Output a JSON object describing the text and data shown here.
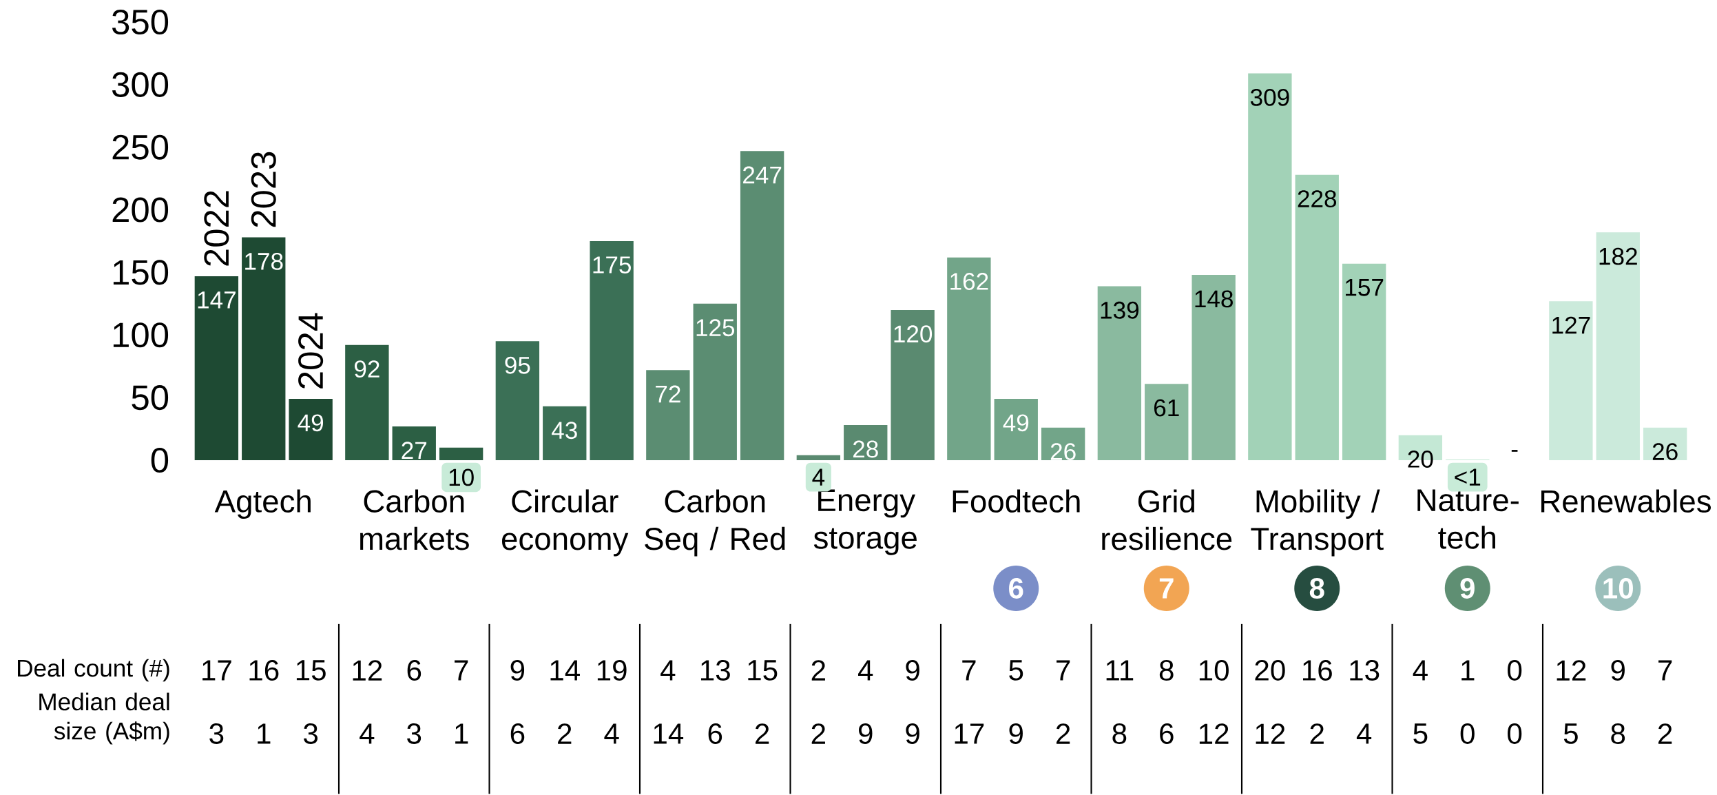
{
  "chart_data": [
    {
      "type": "bar",
      "categories": [
        "Agtech",
        "Carbon markets",
        "Circular economy",
        "Carbon Seq / Red",
        "Energy storage",
        "Foodtech",
        "Grid resilience",
        "Mobility / Transport",
        "Nature-tech",
        "Renewables"
      ],
      "series": [
        {
          "name": "2022",
          "colors": [
            "#1e4a33",
            "#2c5f44",
            "#3b7056",
            "#5b8d72",
            "#5a8a70",
            "#72a589",
            "#8aba9f",
            "#a2d2b7",
            "#c4e8d5",
            "#cbeadb"
          ],
          "values": [
            147,
            92,
            95,
            72,
            4,
            162,
            139,
            309,
            20,
            127
          ],
          "value_labels": [
            "147",
            "92",
            "95",
            "72",
            "4",
            "162",
            "139",
            "309",
            "20",
            "127"
          ]
        },
        {
          "name": "2023",
          "colors": [
            "#1e4a33",
            "#2c5f44",
            "#3b7056",
            "#5b8d72",
            "#5a8a70",
            "#72a589",
            "#8aba9f",
            "#a2d2b7",
            "#c4e8d5",
            "#cbeadb"
          ],
          "values": [
            178,
            27,
            43,
            125,
            28,
            49,
            61,
            228,
            0.5,
            182
          ],
          "value_labels": [
            "178",
            "27",
            "43",
            "125",
            "28",
            "49",
            "61",
            "228",
            "<1",
            "182"
          ]
        },
        {
          "name": "2024",
          "colors": [
            "#1e4a33",
            "#2c5f44",
            "#3b7056",
            "#5b8d72",
            "#5a8a70",
            "#72a589",
            "#8aba9f",
            "#a2d2b7",
            "#c4e8d5",
            "#cbeadb"
          ],
          "values": [
            49,
            10,
            175,
            247,
            120,
            26,
            148,
            157,
            null,
            26
          ],
          "value_labels": [
            "49",
            "10",
            "175",
            "247",
            "120",
            "26",
            "148",
            "157",
            "-",
            "26"
          ]
        }
      ],
      "ylim": [
        0,
        350
      ],
      "yticks": [
        0,
        50,
        100,
        150,
        200,
        250,
        300,
        350
      ],
      "annotations": [
        "6",
        "7",
        "8",
        "9",
        "10"
      ]
    },
    {
      "type": "heatmap",
      "data_labels": true,
      "categories": [
        null,
        null,
        null,
        null,
        null,
        null,
        null,
        null,
        null,
        null,
        null,
        null,
        null,
        null,
        null,
        null,
        null,
        null,
        null,
        null,
        null,
        null,
        null,
        null,
        null,
        null,
        null,
        null,
        null,
        null
      ],
      "y_categories": [
        "Deal count (#)",
        "Median deal size (A$m)"
      ],
      "cells": [
        [
          17,
          16,
          15,
          12,
          6,
          7,
          9,
          14,
          19,
          4,
          13,
          15,
          2,
          4,
          9,
          7,
          5,
          7,
          11,
          8,
          10,
          20,
          16,
          13,
          4,
          1,
          0,
          12,
          9,
          7
        ],
        [
          3,
          1,
          3,
          4,
          3,
          1,
          6,
          2,
          4,
          14,
          6,
          2,
          2,
          9,
          9,
          17,
          9,
          2,
          8,
          6,
          12,
          12,
          2,
          4,
          5,
          0,
          0,
          5,
          8,
          2
        ]
      ]
    }
  ]
}
